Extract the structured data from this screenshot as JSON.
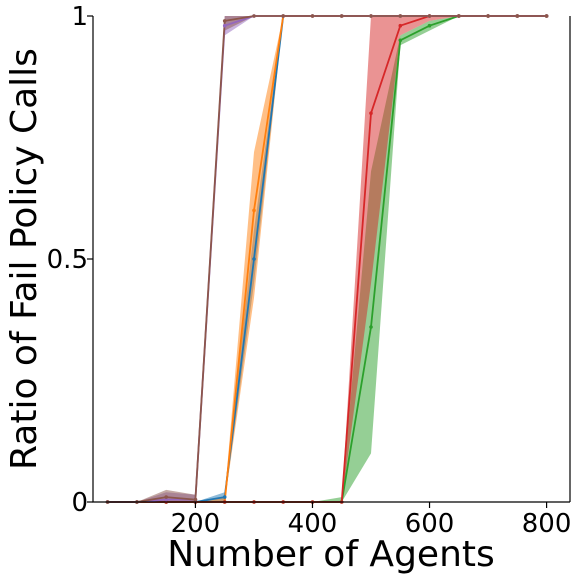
{
  "chart_data": {
    "type": "line",
    "title": "",
    "xlabel": "Number of Agents",
    "ylabel": "Ratio of Fail Policy Calls",
    "xlim": [
      25,
      840
    ],
    "ylim": [
      0,
      1
    ],
    "x_ticks": [
      200,
      400,
      600,
      800
    ],
    "x_tick_labels": [
      "200",
      "400",
      "600",
      "800"
    ],
    "y_ticks": [
      0,
      0.5,
      1
    ],
    "y_tick_labels": [
      "0",
      "0.5",
      "1"
    ],
    "grid": false,
    "legend": "none",
    "series": [
      {
        "color": "#1f77b4",
        "x": [
          50,
          100,
          150,
          200,
          250,
          300,
          350,
          400,
          450,
          500,
          550,
          600,
          650,
          700,
          750,
          800
        ],
        "y": [
          0,
          0,
          0,
          0,
          0.01,
          0.5,
          1,
          1,
          1,
          1,
          1,
          1,
          1,
          1,
          1,
          1
        ],
        "lower": [
          0,
          0,
          0,
          0,
          0.0,
          0.45,
          1,
          1,
          1,
          1,
          1,
          1,
          1,
          1,
          1,
          1
        ],
        "upper": [
          0,
          0,
          0,
          0,
          0.02,
          0.56,
          1,
          1,
          1,
          1,
          1,
          1,
          1,
          1,
          1,
          1
        ]
      },
      {
        "color": "#ff7f0e",
        "x": [
          50,
          100,
          150,
          200,
          250,
          300,
          350,
          400,
          450,
          500,
          550,
          600,
          650,
          700,
          750,
          800
        ],
        "y": [
          0,
          0,
          0,
          0,
          0,
          0.6,
          1,
          1,
          1,
          1,
          1,
          1,
          1,
          1,
          1,
          1
        ],
        "lower": [
          0,
          0,
          0,
          0,
          0,
          0.42,
          1,
          1,
          1,
          1,
          1,
          1,
          1,
          1,
          1,
          1
        ],
        "upper": [
          0,
          0,
          0,
          0,
          0.01,
          0.72,
          1,
          1,
          1,
          1,
          1,
          1,
          1,
          1,
          1,
          1
        ]
      },
      {
        "color": "#2ca02c",
        "x": [
          50,
          100,
          150,
          200,
          250,
          300,
          350,
          400,
          450,
          500,
          550,
          600,
          650,
          700,
          750,
          800
        ],
        "y": [
          0,
          0,
          0,
          0,
          0,
          0,
          0,
          0,
          0,
          0.36,
          0.95,
          0.98,
          1,
          1,
          1,
          1
        ],
        "lower": [
          0,
          0,
          0,
          0,
          0,
          0,
          0,
          0,
          0,
          0.1,
          0.94,
          0.97,
          1,
          1,
          1,
          1
        ],
        "upper": [
          0,
          0,
          0,
          0,
          0,
          0,
          0,
          0,
          0.01,
          0.68,
          0.96,
          0.99,
          1,
          1,
          1,
          1
        ]
      },
      {
        "color": "#d62728",
        "x": [
          50,
          100,
          150,
          200,
          250,
          300,
          350,
          400,
          450,
          500,
          550,
          600,
          650,
          700,
          750,
          800
        ],
        "y": [
          0,
          0,
          0,
          0,
          0,
          0,
          0,
          0,
          0,
          0.8,
          0.98,
          1,
          1,
          1,
          1,
          1
        ],
        "lower": [
          0,
          0,
          0,
          0,
          0,
          0,
          0,
          0,
          0,
          0.45,
          0.96,
          0.99,
          1,
          1,
          1,
          1
        ],
        "upper": [
          0,
          0,
          0,
          0,
          0,
          0,
          0,
          0,
          0,
          1,
          1,
          1,
          1,
          1,
          1,
          1
        ]
      },
      {
        "color": "#9467bd",
        "x": [
          50,
          100,
          150,
          200,
          250,
          300,
          350,
          400,
          450,
          500,
          550,
          600,
          650,
          700,
          750,
          800
        ],
        "y": [
          0,
          0,
          0.005,
          0.005,
          0.98,
          1,
          1,
          1,
          1,
          1,
          1,
          1,
          1,
          1,
          1,
          1
        ],
        "lower": [
          0,
          0,
          0,
          0,
          0.96,
          1,
          1,
          1,
          1,
          1,
          1,
          1,
          1,
          1,
          1,
          1
        ],
        "upper": [
          0,
          0,
          0.02,
          0.015,
          1,
          1,
          1,
          1,
          1,
          1,
          1,
          1,
          1,
          1,
          1,
          1
        ]
      },
      {
        "color": "#8c564b",
        "x": [
          50,
          100,
          150,
          200,
          250,
          300,
          350,
          400,
          450,
          500,
          550,
          600,
          650,
          700,
          750,
          800
        ],
        "y": [
          0,
          0,
          0.01,
          0.005,
          0.99,
          1,
          1,
          1,
          1,
          1,
          1,
          1,
          1,
          1,
          1,
          1
        ],
        "lower": [
          0,
          0,
          0,
          0,
          0.97,
          1,
          1,
          1,
          1,
          1,
          1,
          1,
          1,
          1,
          1,
          1
        ],
        "upper": [
          0,
          0,
          0.025,
          0.015,
          1,
          1,
          1,
          1,
          1,
          1,
          1,
          1,
          1,
          1,
          1,
          1
        ]
      }
    ]
  }
}
